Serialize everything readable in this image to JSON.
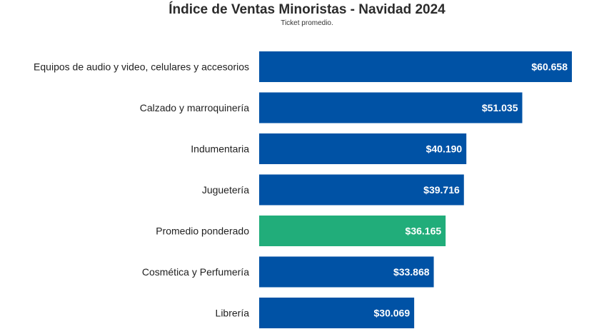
{
  "chart_data": {
    "type": "bar",
    "orientation": "horizontal",
    "title": "Índice de Ventas Minoristas - Navidad 2024",
    "subtitle": "Ticket promedio.",
    "categories": [
      "Equipos de audio y video, celulares y accesorios",
      "Calzado y marroquinería",
      "Indumentaria",
      "Juguetería",
      "Promedio ponderado",
      "Cosmética y Perfumería",
      "Librería"
    ],
    "values": [
      60658,
      51035,
      40190,
      39716,
      36165,
      33868,
      30069
    ],
    "value_labels": [
      "$60.658",
      "$51.035",
      "$40.190",
      "$39.716",
      "$36.165",
      "$33.868",
      "$30.069"
    ],
    "highlight_category": "Promedio ponderado",
    "xlim": [
      0,
      60658
    ],
    "grid": false,
    "legend": "none",
    "colors": {
      "bar": "#0052a5",
      "highlight": "#21ad7a",
      "value_text": "#ffffff"
    }
  }
}
